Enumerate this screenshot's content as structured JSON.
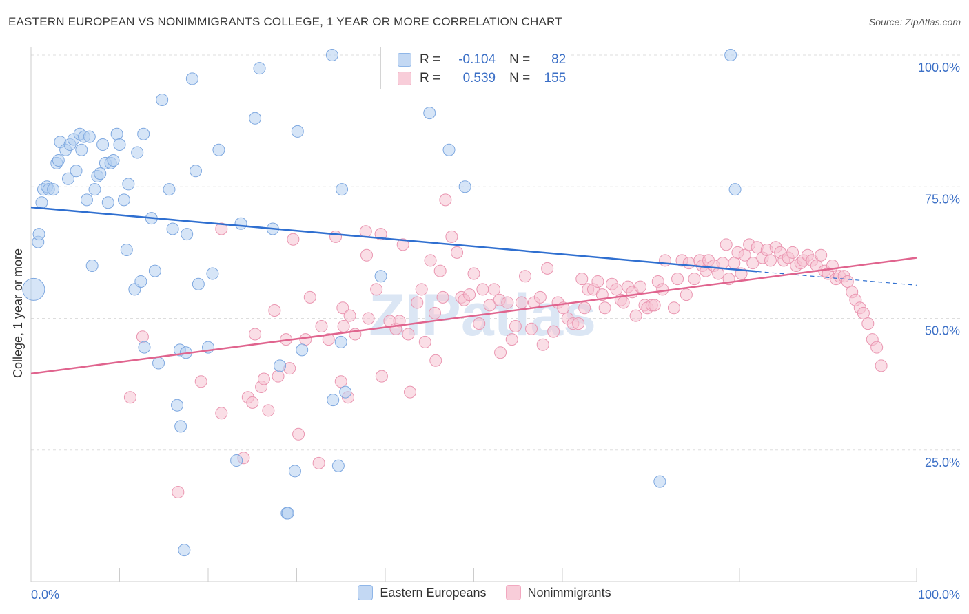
{
  "title": "EASTERN EUROPEAN VS NONIMMIGRANTS COLLEGE, 1 YEAR OR MORE CORRELATION CHART",
  "source": "Source: ZipAtlas.com",
  "colors": {
    "blue": "#8fb6e8",
    "blue_line": "#2f6fd0",
    "pink": "#f2a8c0",
    "pink_line": "#e0648e",
    "axis_text": "#3b6fc6"
  },
  "legend_top": {
    "rows": [
      {
        "r_label": "R =",
        "r_value": "-0.104",
        "n_label": "N =",
        "n_value": "82"
      },
      {
        "r_label": "R =",
        "r_value": "0.539",
        "n_label": "N =",
        "n_value": "155"
      }
    ]
  },
  "legend_bottom": [
    "Eastern Europeans",
    "Nonimmigrants"
  ],
  "watermark": "ZIPatlas",
  "chart_data": {
    "type": "scatter",
    "ylabel": "College, 1 year or more",
    "xlim": [
      0,
      100
    ],
    "ylim": [
      0,
      100
    ],
    "x_tick_labels": [
      "0.0%",
      "100.0%"
    ],
    "y_tick_labels": [
      "100.0%",
      "75.0%",
      "50.0%",
      "25.0%"
    ],
    "y_ticks": [
      100,
      75,
      50,
      25
    ],
    "grid": true,
    "legend": "top-center",
    "series": [
      {
        "name": "Eastern Europeans",
        "trend": {
          "x": [
            0,
            82
          ],
          "y": [
            71.1,
            58.9
          ],
          "dashed_to": [
            100,
            56.3
          ]
        },
        "points": [
          [
            0.3,
            55.5
          ],
          [
            0.8,
            64.5
          ],
          [
            0.9,
            66
          ],
          [
            1.2,
            72
          ],
          [
            1.4,
            74.5
          ],
          [
            1.8,
            75
          ],
          [
            2,
            74.5
          ],
          [
            2.5,
            74.5
          ],
          [
            2.9,
            79.5
          ],
          [
            3.1,
            80
          ],
          [
            3.3,
            83.5
          ],
          [
            3.9,
            82
          ],
          [
            4.2,
            76.5
          ],
          [
            4.4,
            83
          ],
          [
            4.8,
            84
          ],
          [
            5.1,
            78
          ],
          [
            5.5,
            85
          ],
          [
            5.7,
            82
          ],
          [
            6,
            84.5
          ],
          [
            6.3,
            72.5
          ],
          [
            6.6,
            84.5
          ],
          [
            6.9,
            60
          ],
          [
            7.2,
            74.5
          ],
          [
            7.5,
            77
          ],
          [
            7.8,
            77.5
          ],
          [
            8.1,
            83
          ],
          [
            8.4,
            79.5
          ],
          [
            8.7,
            72
          ],
          [
            9,
            79.5
          ],
          [
            9.3,
            80
          ],
          [
            9.7,
            85
          ],
          [
            10,
            83
          ],
          [
            10.5,
            72.5
          ],
          [
            10.8,
            63
          ],
          [
            11,
            75.5
          ],
          [
            11.7,
            55.5
          ],
          [
            12,
            81.5
          ],
          [
            12.4,
            57
          ],
          [
            12.7,
            85
          ],
          [
            12.8,
            44.5
          ],
          [
            13.6,
            69
          ],
          [
            14,
            59
          ],
          [
            14.4,
            41.5
          ],
          [
            14.8,
            91.5
          ],
          [
            15.6,
            74.5
          ],
          [
            16,
            67
          ],
          [
            16.5,
            33.5
          ],
          [
            16.8,
            44
          ],
          [
            16.9,
            29.5
          ],
          [
            17.3,
            6
          ],
          [
            17.5,
            43.5
          ],
          [
            17.6,
            66
          ],
          [
            18.2,
            95.5
          ],
          [
            18.6,
            78
          ],
          [
            18.9,
            56.5
          ],
          [
            20,
            44.5
          ],
          [
            20.5,
            58.5
          ],
          [
            21.2,
            82
          ],
          [
            23.2,
            23
          ],
          [
            23.7,
            68
          ],
          [
            25.3,
            88
          ],
          [
            25.8,
            97.5
          ],
          [
            27.3,
            67
          ],
          [
            28.1,
            41
          ],
          [
            28.9,
            13
          ],
          [
            29,
            13
          ],
          [
            29.8,
            21
          ],
          [
            30.1,
            85.5
          ],
          [
            30.6,
            44
          ],
          [
            34,
            100
          ],
          [
            34.1,
            34.5
          ],
          [
            34.7,
            22
          ],
          [
            35,
            45.5
          ],
          [
            35.1,
            74.5
          ],
          [
            35.5,
            36
          ],
          [
            39.5,
            58
          ],
          [
            45,
            89
          ],
          [
            47.2,
            82
          ],
          [
            49,
            75
          ],
          [
            71,
            19
          ],
          [
            79,
            100
          ],
          [
            79.5,
            74.5
          ]
        ]
      },
      {
        "name": "Nonimmigrants",
        "trend": {
          "x": [
            0,
            100
          ],
          "y": [
            39.5,
            61.5
          ]
        },
        "points": [
          [
            11.2,
            35
          ],
          [
            12.6,
            46.5
          ],
          [
            16.6,
            17
          ],
          [
            19.2,
            38
          ],
          [
            21.5,
            32
          ],
          [
            21.5,
            67
          ],
          [
            24,
            23.5
          ],
          [
            24.5,
            35
          ],
          [
            25,
            34
          ],
          [
            25.3,
            47
          ],
          [
            26,
            37
          ],
          [
            26.3,
            38.5
          ],
          [
            26.8,
            32.5
          ],
          [
            27.5,
            51.5
          ],
          [
            27.9,
            39
          ],
          [
            28.8,
            46
          ],
          [
            29.2,
            40.5
          ],
          [
            29.6,
            65
          ],
          [
            30.2,
            28
          ],
          [
            31,
            46
          ],
          [
            31.5,
            54
          ],
          [
            32.5,
            22.5
          ],
          [
            32.8,
            48.5
          ],
          [
            33.6,
            46
          ],
          [
            34.4,
            65.5
          ],
          [
            35,
            38
          ],
          [
            35.2,
            52
          ],
          [
            35.3,
            48.5
          ],
          [
            35.8,
            35
          ],
          [
            36,
            50.5
          ],
          [
            36.6,
            47
          ],
          [
            37.8,
            66.5
          ],
          [
            37.9,
            62
          ],
          [
            38.1,
            50
          ],
          [
            39,
            55.5
          ],
          [
            39.5,
            66
          ],
          [
            39.6,
            39
          ],
          [
            40.5,
            49.5
          ],
          [
            41.2,
            48
          ],
          [
            41.6,
            49.5
          ],
          [
            42,
            64
          ],
          [
            42.6,
            47
          ],
          [
            42.8,
            36
          ],
          [
            43.6,
            53
          ],
          [
            44.1,
            55.5
          ],
          [
            44.5,
            45.5
          ],
          [
            45.1,
            61
          ],
          [
            45.6,
            51
          ],
          [
            45.7,
            42
          ],
          [
            46.2,
            59
          ],
          [
            46.5,
            54
          ],
          [
            46.8,
            72.5
          ],
          [
            47.5,
            65.5
          ],
          [
            48.1,
            62.5
          ],
          [
            48.6,
            54
          ],
          [
            48.9,
            53.5
          ],
          [
            49.5,
            54.5
          ],
          [
            50,
            58.5
          ],
          [
            50.6,
            49
          ],
          [
            51,
            55.5
          ],
          [
            51.8,
            52.5
          ],
          [
            52.3,
            55.5
          ],
          [
            52.9,
            53.5
          ],
          [
            53,
            43.5
          ],
          [
            53.8,
            53
          ],
          [
            54.3,
            46
          ],
          [
            54.7,
            48.5
          ],
          [
            55.4,
            53
          ],
          [
            55.8,
            58
          ],
          [
            56.5,
            48
          ],
          [
            56.8,
            53
          ],
          [
            57.5,
            54
          ],
          [
            57.8,
            45
          ],
          [
            58.3,
            59.5
          ],
          [
            59,
            47.5
          ],
          [
            59.5,
            53
          ],
          [
            60.1,
            52
          ],
          [
            60.6,
            50
          ],
          [
            61.2,
            49
          ],
          [
            61.8,
            49
          ],
          [
            62.2,
            57.5
          ],
          [
            62.5,
            52
          ],
          [
            62.9,
            55.5
          ],
          [
            63.5,
            55.5
          ],
          [
            64,
            57
          ],
          [
            64.5,
            54.5
          ],
          [
            64.8,
            52
          ],
          [
            65.6,
            56.5
          ],
          [
            66.1,
            55.5
          ],
          [
            66.6,
            53.5
          ],
          [
            66.9,
            53
          ],
          [
            67.4,
            56
          ],
          [
            67.9,
            55
          ],
          [
            68.3,
            50.5
          ],
          [
            68.8,
            56
          ],
          [
            69.3,
            52.5
          ],
          [
            69.6,
            52
          ],
          [
            70.1,
            52.5
          ],
          [
            70.4,
            52.5
          ],
          [
            70.8,
            57
          ],
          [
            71.3,
            55.5
          ],
          [
            71.6,
            61
          ],
          [
            72.6,
            52
          ],
          [
            73,
            57.5
          ],
          [
            73.5,
            61
          ],
          [
            74,
            54.5
          ],
          [
            74.3,
            60.5
          ],
          [
            74.9,
            57.5
          ],
          [
            75.5,
            61
          ],
          [
            75.8,
            60
          ],
          [
            76.2,
            59
          ],
          [
            76.5,
            61
          ],
          [
            77.1,
            60
          ],
          [
            77.6,
            58.5
          ],
          [
            78.1,
            60.5
          ],
          [
            78.5,
            64
          ],
          [
            78.8,
            57.5
          ],
          [
            79.4,
            60.5
          ],
          [
            79.8,
            62.5
          ],
          [
            80.2,
            58.5
          ],
          [
            80.6,
            62
          ],
          [
            81.1,
            64
          ],
          [
            81.5,
            60.5
          ],
          [
            82,
            63.5
          ],
          [
            82.6,
            61.5
          ],
          [
            83.1,
            63
          ],
          [
            83.5,
            61
          ],
          [
            84.1,
            63.5
          ],
          [
            84.6,
            62.5
          ],
          [
            85,
            61
          ],
          [
            85.5,
            61.5
          ],
          [
            86,
            62.5
          ],
          [
            86.4,
            60
          ],
          [
            86.9,
            60.5
          ],
          [
            87.2,
            61
          ],
          [
            87.7,
            62
          ],
          [
            88.2,
            61
          ],
          [
            88.7,
            60
          ],
          [
            89.2,
            62
          ],
          [
            89.6,
            59
          ],
          [
            90,
            58.5
          ],
          [
            90.5,
            60
          ],
          [
            90.9,
            57.5
          ],
          [
            91.3,
            58
          ],
          [
            91.8,
            58
          ],
          [
            92.2,
            57
          ],
          [
            92.7,
            55
          ],
          [
            93.1,
            53.5
          ],
          [
            93.6,
            52
          ],
          [
            94,
            51
          ],
          [
            94.5,
            49
          ],
          [
            95,
            46
          ],
          [
            95.5,
            44.5
          ],
          [
            96,
            41
          ]
        ]
      }
    ]
  }
}
